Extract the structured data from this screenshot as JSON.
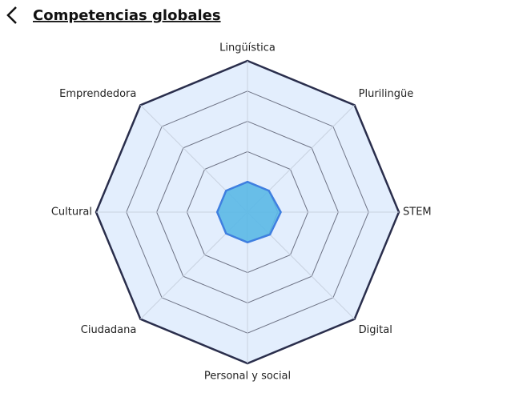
{
  "chart_data": {
    "type": "radar",
    "title": "Competencias globales",
    "categories": [
      "Lingüística",
      "Plurilingüe",
      "STEM",
      "Digital",
      "Personal y social",
      "Ciudadana",
      "Cultural",
      "Emprendedora"
    ],
    "values": [
      1,
      1,
      1.1,
      1.05,
      1,
      1,
      1,
      1
    ],
    "color": "#5ab8e6",
    "line_color": "#3f7fe0",
    "rlim": [
      0,
      5
    ],
    "rticks": [
      1,
      2,
      3,
      4,
      5
    ],
    "grid": true
  }
}
